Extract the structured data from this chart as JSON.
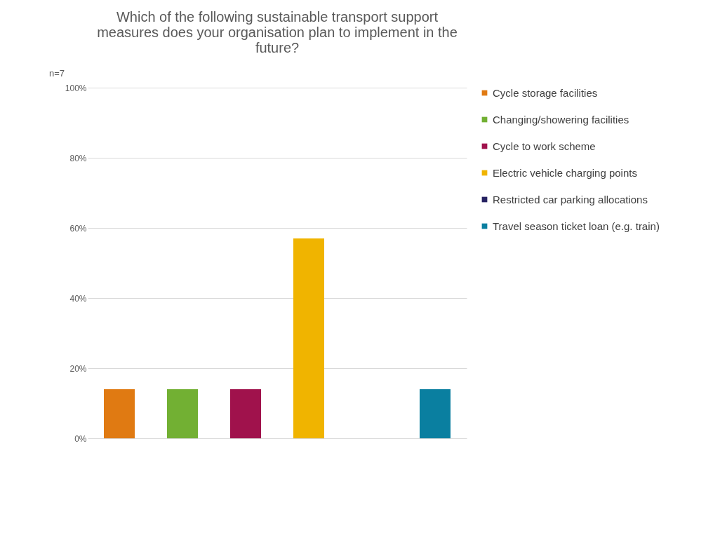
{
  "chart_data": {
    "type": "bar",
    "title": "Which of the following sustainable transport support measures does your organisation plan to implement in the future?",
    "annotations": [
      "n=7"
    ],
    "categories": [
      null
    ],
    "series": [
      {
        "name": "Cycle storage facilities",
        "color": "#e07a12",
        "values": [
          14
        ]
      },
      {
        "name": "Changing/showering facilities",
        "color": "#72b033",
        "values": [
          14
        ]
      },
      {
        "name": "Cycle to work scheme",
        "color": "#a0124c",
        "values": [
          14
        ]
      },
      {
        "name": "Electric vehicle charging points",
        "color": "#f0b400",
        "values": [
          57
        ]
      },
      {
        "name": "Restricted car parking allocations",
        "color": "#262262",
        "values": [
          0
        ]
      },
      {
        "name": "Travel season ticket loan (e.g. train)",
        "color": "#0a7fa0",
        "values": [
          14
        ]
      }
    ],
    "ylim": [
      0,
      100
    ],
    "yticks": [
      {
        "value": 0,
        "label": "0%"
      },
      {
        "value": 20,
        "label": "20%"
      },
      {
        "value": 40,
        "label": "40%"
      },
      {
        "value": 60,
        "label": "60%"
      },
      {
        "value": 80,
        "label": "80%"
      },
      {
        "value": 100,
        "label": "100%"
      }
    ],
    "grid": "y",
    "legend": "right"
  }
}
